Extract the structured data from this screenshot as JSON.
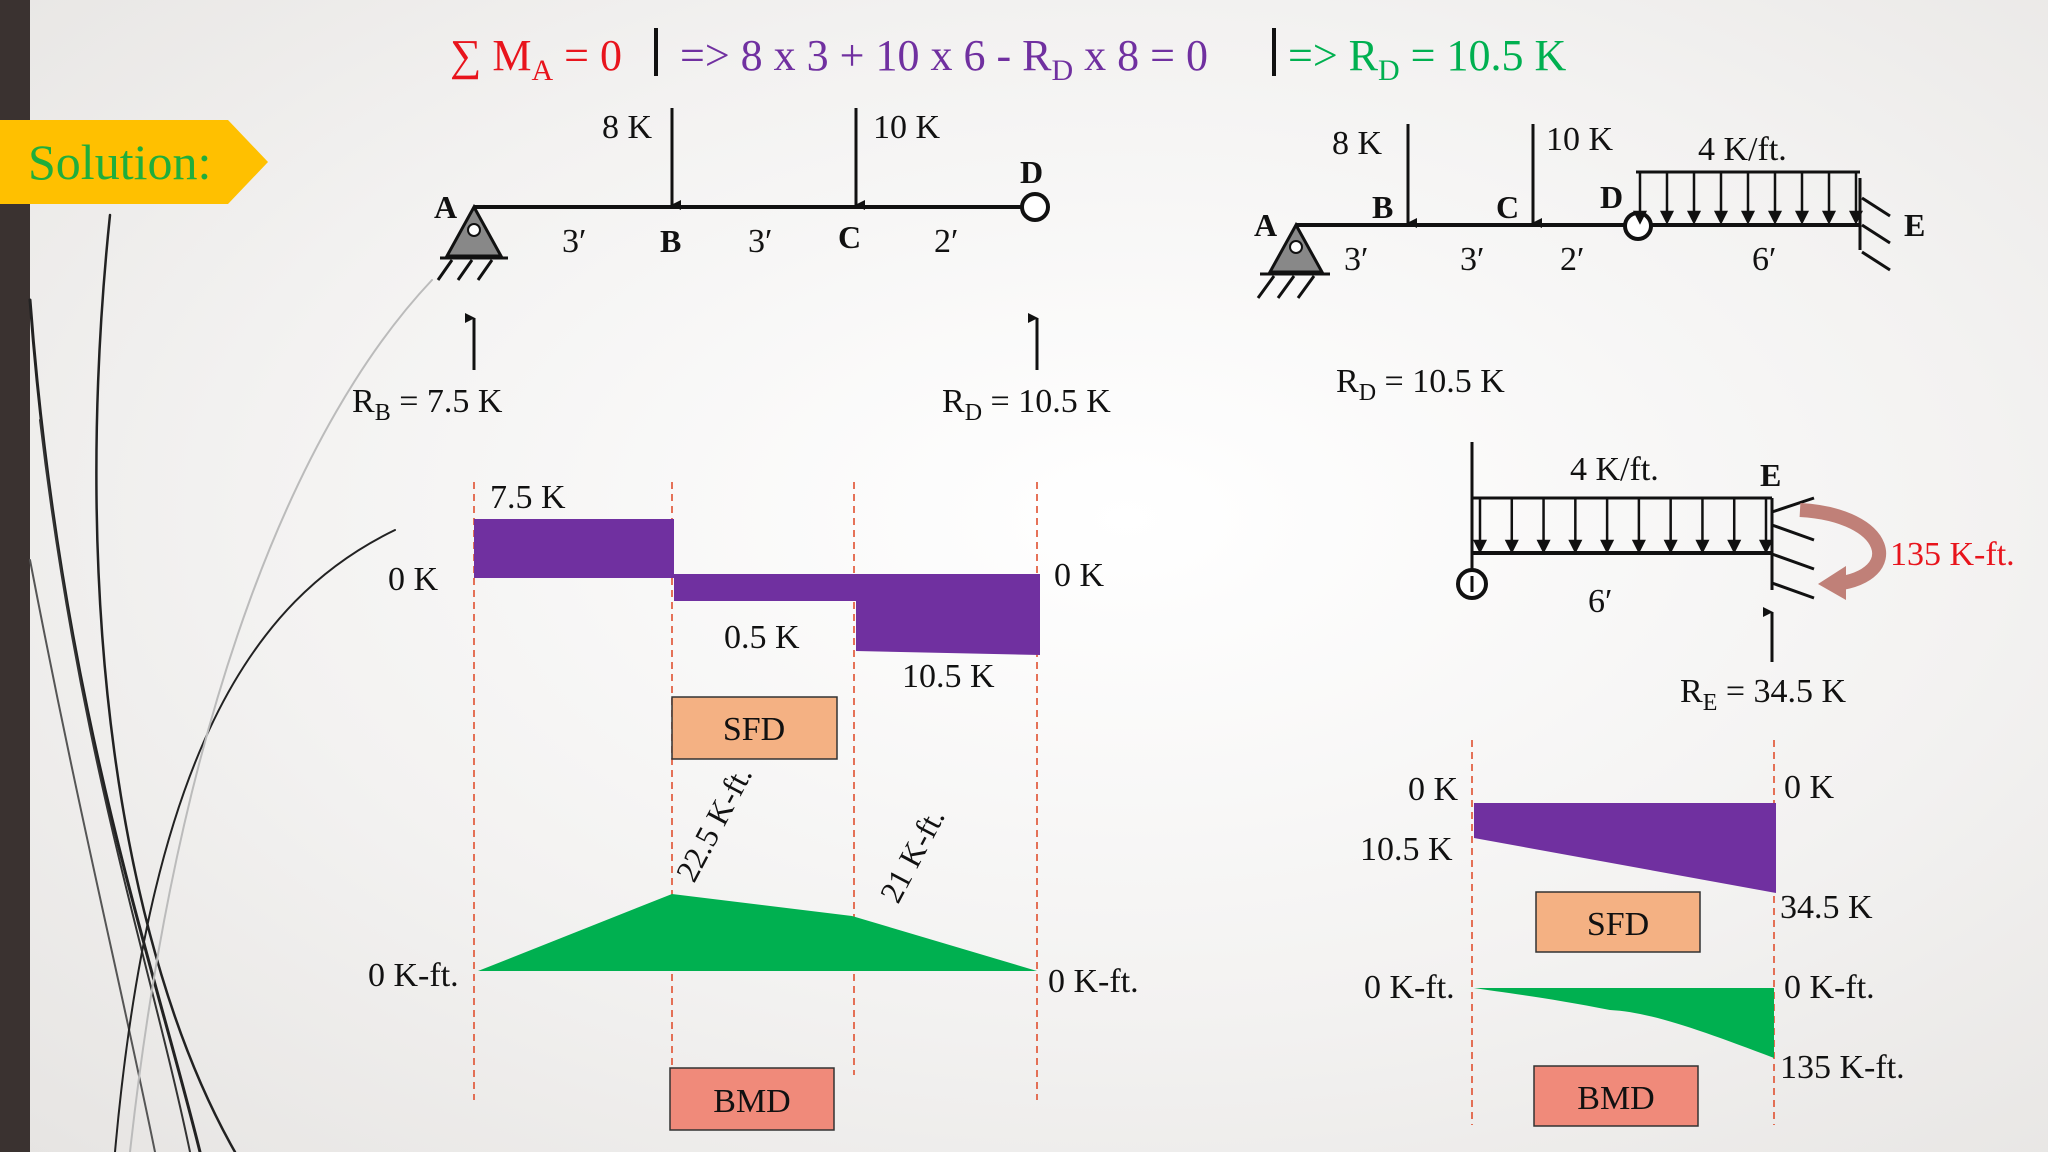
{
  "solution_label": "Solution:",
  "colors": {
    "red": "#e8141c",
    "purple": "#7030a0",
    "green": "#00b050",
    "sfd_fill": "#7030a0",
    "bmd_fill": "#00b050",
    "sfd_label_box": "#f4b183",
    "bmd_label_box": "#f08a7a",
    "moment_arrow": "#c08078",
    "tag": "#ffc000"
  },
  "equation": {
    "part1_sum": "∑ M",
    "part1_sub": "A",
    "part1_end": " = 0",
    "part2_a": "=> 8 x 3 + 10 x 6 - R",
    "part2_sub": "D",
    "part2_b": " x 8 = 0",
    "part3_a": "=> R",
    "part3_sub": "D",
    "part3_b": " = 10.5 K"
  },
  "beam1": {
    "nodes": [
      "A",
      "B",
      "C",
      "D"
    ],
    "loads": [
      "8 K",
      "10 K"
    ],
    "spans": [
      "3′",
      "3′",
      "2′"
    ],
    "reaction_b_main": "R",
    "reaction_b_sub": "B",
    "reaction_b_val": " = 7.5 K",
    "reaction_d_main": "R",
    "reaction_d_sub": "D",
    "reaction_d_val": " = 10.5 K"
  },
  "sfd1": {
    "top_value": "7.5 K",
    "zero_left": "0 K",
    "zero_right": "0 K",
    "mid_value": "0.5 K",
    "right_value": "10.5 K",
    "box_label": "SFD"
  },
  "bmd1": {
    "peak_b": "22.5 K-ft.",
    "peak_c": "21 K-ft.",
    "zero_left": "0 K-ft.",
    "zero_right": "0 K-ft.",
    "box_label": "BMD"
  },
  "beam2": {
    "nodes": [
      "A",
      "B",
      "C",
      "D",
      "E"
    ],
    "loads": [
      "8 K",
      "10 K",
      "4 K/ft."
    ],
    "spans": [
      "3′",
      "3′",
      "2′",
      "6′"
    ],
    "reaction_d_main": "R",
    "reaction_d_sub": "D",
    "reaction_d_val": " = 10.5 K"
  },
  "fbd": {
    "udl": "4 K/ft.",
    "node": "E",
    "span": "6′",
    "moment": "135 K-ft.",
    "reaction_main": "R",
    "reaction_sub": "E",
    "reaction_val": " = 34.5 K"
  },
  "sfd2": {
    "zero_left": "0 K",
    "zero_right": "0 K",
    "left_value": "10.5 K",
    "right_value": "34.5 K",
    "box_label": "SFD"
  },
  "bmd2": {
    "zero_left": "0 K-ft.",
    "zero_right": "0 K-ft.",
    "right_value": "135 K-ft.",
    "box_label": "BMD"
  }
}
